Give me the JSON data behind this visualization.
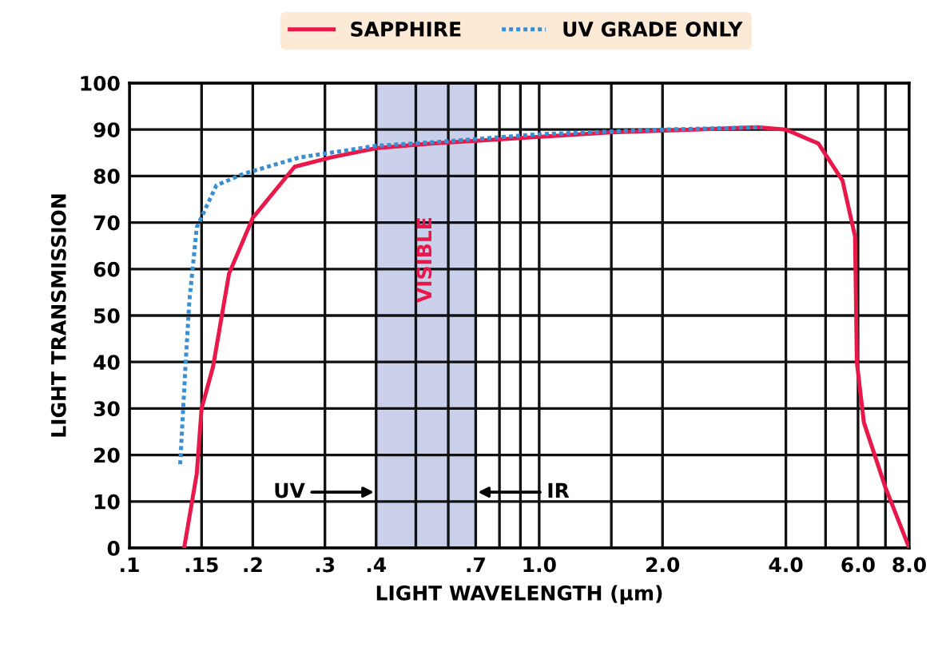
{
  "chart_data": {
    "type": "line",
    "xlabel": "LIGHT WAVELENGTH (μm)",
    "ylabel": "LIGHT TRANSMISSION",
    "log": "x",
    "xlim": [
      0.1,
      8.0
    ],
    "ylim": [
      0,
      100
    ],
    "xticks": [
      {
        "value": 0.1,
        "label": ".1"
      },
      {
        "value": 0.15,
        "label": ".15"
      },
      {
        "value": 0.2,
        "label": ".2"
      },
      {
        "value": 0.3,
        "label": ".3"
      },
      {
        "value": 0.4,
        "label": ".4"
      },
      {
        "value": 0.5,
        "label": null
      },
      {
        "value": 0.6,
        "label": null
      },
      {
        "value": 0.7,
        "label": ".7"
      },
      {
        "value": 0.8,
        "label": null
      },
      {
        "value": 0.9,
        "label": null
      },
      {
        "value": 1.0,
        "label": "1.0"
      },
      {
        "value": 1.5,
        "label": null
      },
      {
        "value": 2.0,
        "label": "2.0"
      },
      {
        "value": 4.0,
        "label": "4.0"
      },
      {
        "value": 5.0,
        "label": null
      },
      {
        "value": 6.0,
        "label": "6.0"
      },
      {
        "value": 7.0,
        "label": null
      },
      {
        "value": 8.0,
        "label": "8.0"
      }
    ],
    "yticks": [
      0,
      10,
      20,
      30,
      40,
      50,
      60,
      70,
      80,
      90,
      100
    ],
    "grid": true,
    "legend": "top",
    "series": [
      {
        "name": "SAPPHIRE",
        "color": "#e8194a",
        "line_style": "solid",
        "x": [
          0.136,
          0.146,
          0.15,
          0.16,
          0.175,
          0.2,
          0.253,
          0.31,
          0.4,
          0.545,
          0.84,
          1.5,
          2.4,
          3.4,
          4.0,
          4.8,
          5.5,
          5.9,
          5.96,
          6.2,
          7.0,
          8.0
        ],
        "values": [
          0,
          16,
          30,
          39,
          59,
          71,
          82,
          84,
          86,
          87,
          88,
          89.4,
          90,
          90.5,
          90,
          87,
          79,
          67,
          40,
          27,
          13,
          0
        ]
      },
      {
        "name": "UV GRADE ONLY",
        "color": "#3a8fd0",
        "line_style": "dotted",
        "x": [
          0.133,
          0.137,
          0.14,
          0.146,
          0.163,
          0.19,
          0.26,
          0.4,
          0.6,
          1.0,
          2.0,
          3.5
        ],
        "values": [
          18,
          39,
          53,
          69,
          78,
          80.5,
          84,
          86.5,
          87.5,
          89,
          90,
          90.5
        ]
      }
    ],
    "bands": [
      {
        "axis": "x",
        "from": 0.4,
        "to": 0.7,
        "label": "VISIBLE",
        "color": "#c5cbe8"
      }
    ],
    "annotations": [
      {
        "text": "UV",
        "x": 0.4,
        "y": 12
      },
      {
        "text": "IR",
        "x": 0.7,
        "y": 12
      }
    ]
  }
}
